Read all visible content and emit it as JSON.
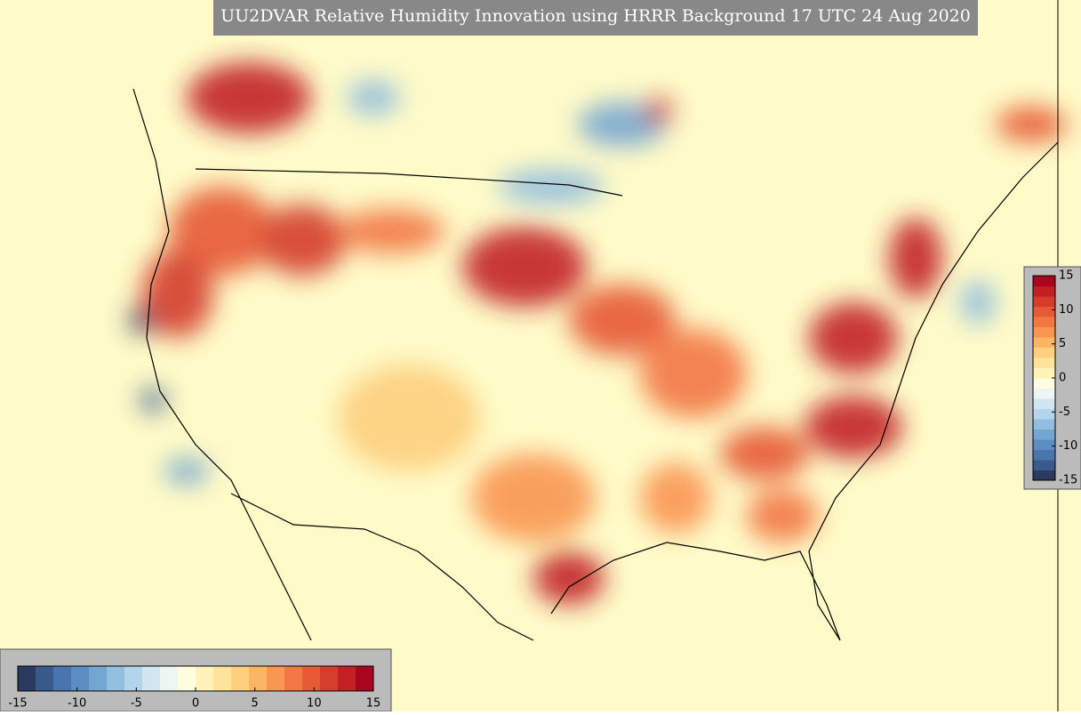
{
  "title": "UU2DVAR Relative Humidity Innovation using HRRR Background 17 UTC 24 Aug 2020",
  "colormap": [
    "#2c3a5e",
    "#3a5a8c",
    "#4a74ad",
    "#5b8cc2",
    "#74a6d2",
    "#92bedf",
    "#b3d4ea",
    "#d2e6f0",
    "#eef6f3",
    "#fffde0",
    "#fff3b8",
    "#fee49a",
    "#fdcf7e",
    "#fcb465",
    "#f99652",
    "#f27744",
    "#e65a36",
    "#d43d2c",
    "#c22025",
    "#a8061f"
  ],
  "colorbars": [
    {
      "orientation": "horizontal",
      "lim": [
        -15,
        15
      ],
      "ticks": [
        -15,
        -10,
        -5,
        0,
        5,
        10,
        15
      ]
    },
    {
      "orientation": "vertical",
      "lim": [
        -15,
        15
      ],
      "ticks": [
        -15,
        -10,
        -5,
        0,
        5,
        10,
        15
      ]
    }
  ]
}
